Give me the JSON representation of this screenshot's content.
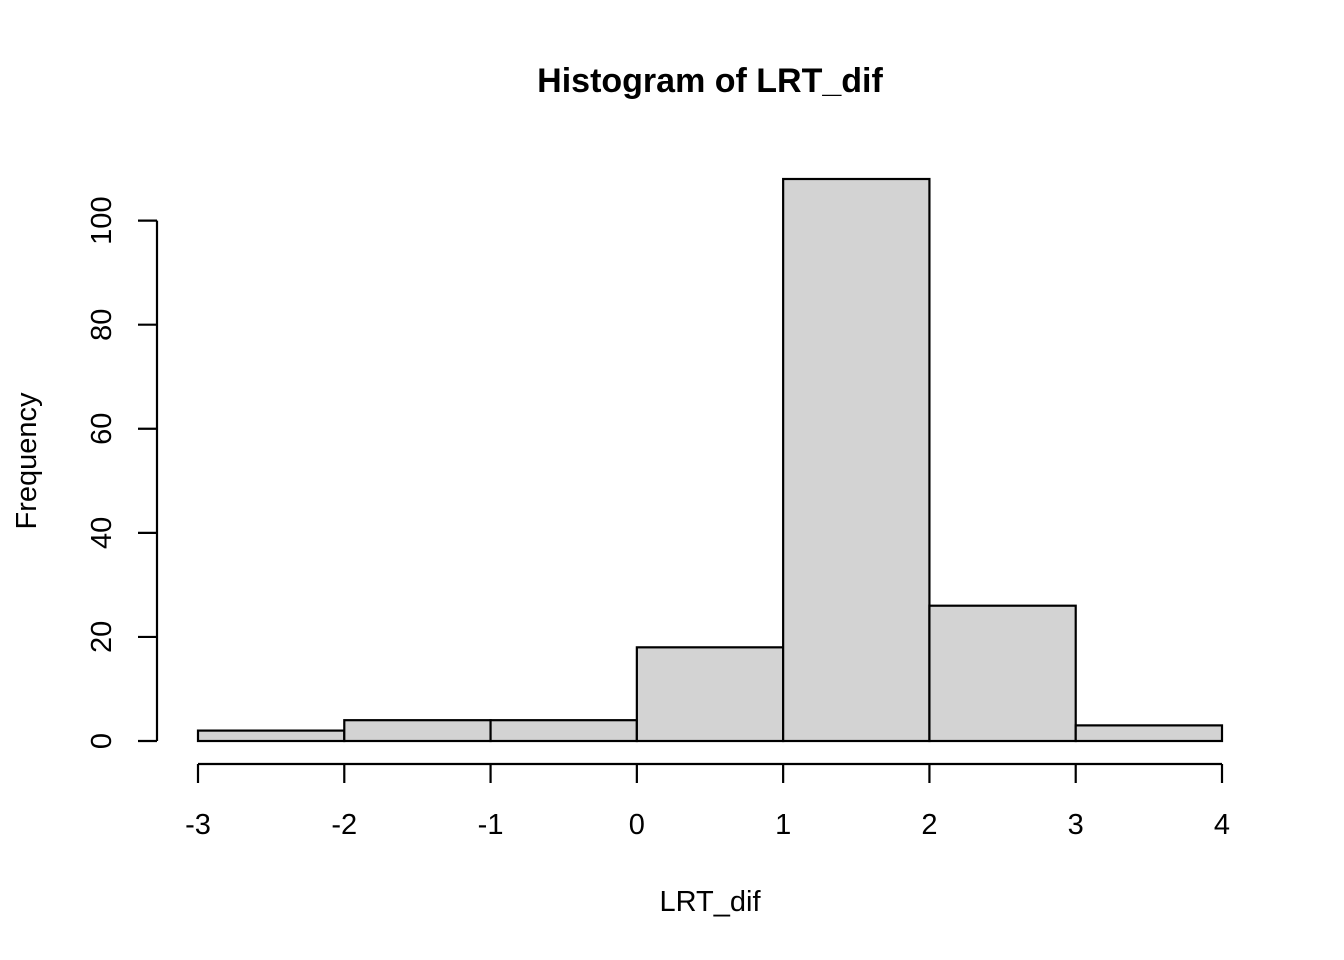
{
  "chart_data": {
    "type": "bar",
    "title": "Histogram of LRT_dif",
    "xlabel": "LRT_dif",
    "ylabel": "Frequency",
    "bin_edges": [
      -3,
      -2,
      -1,
      0,
      1,
      2,
      3,
      4
    ],
    "values": [
      2,
      4,
      4,
      18,
      108,
      26,
      3
    ],
    "xlim": [
      -3,
      4
    ],
    "ylim": [
      0,
      108
    ],
    "x_ticks": [
      -3,
      -2,
      -1,
      0,
      1,
      2,
      3,
      4
    ],
    "x_tick_labels": [
      "-3",
      "-2",
      "-1",
      "0",
      "1",
      "2",
      "3",
      "4"
    ],
    "y_ticks": [
      0,
      20,
      40,
      60,
      80,
      100
    ],
    "y_tick_labels": [
      "0",
      "20",
      "40",
      "60",
      "80",
      "100"
    ],
    "bar_color": "#d3d3d3",
    "grid": false,
    "legend": "none"
  }
}
